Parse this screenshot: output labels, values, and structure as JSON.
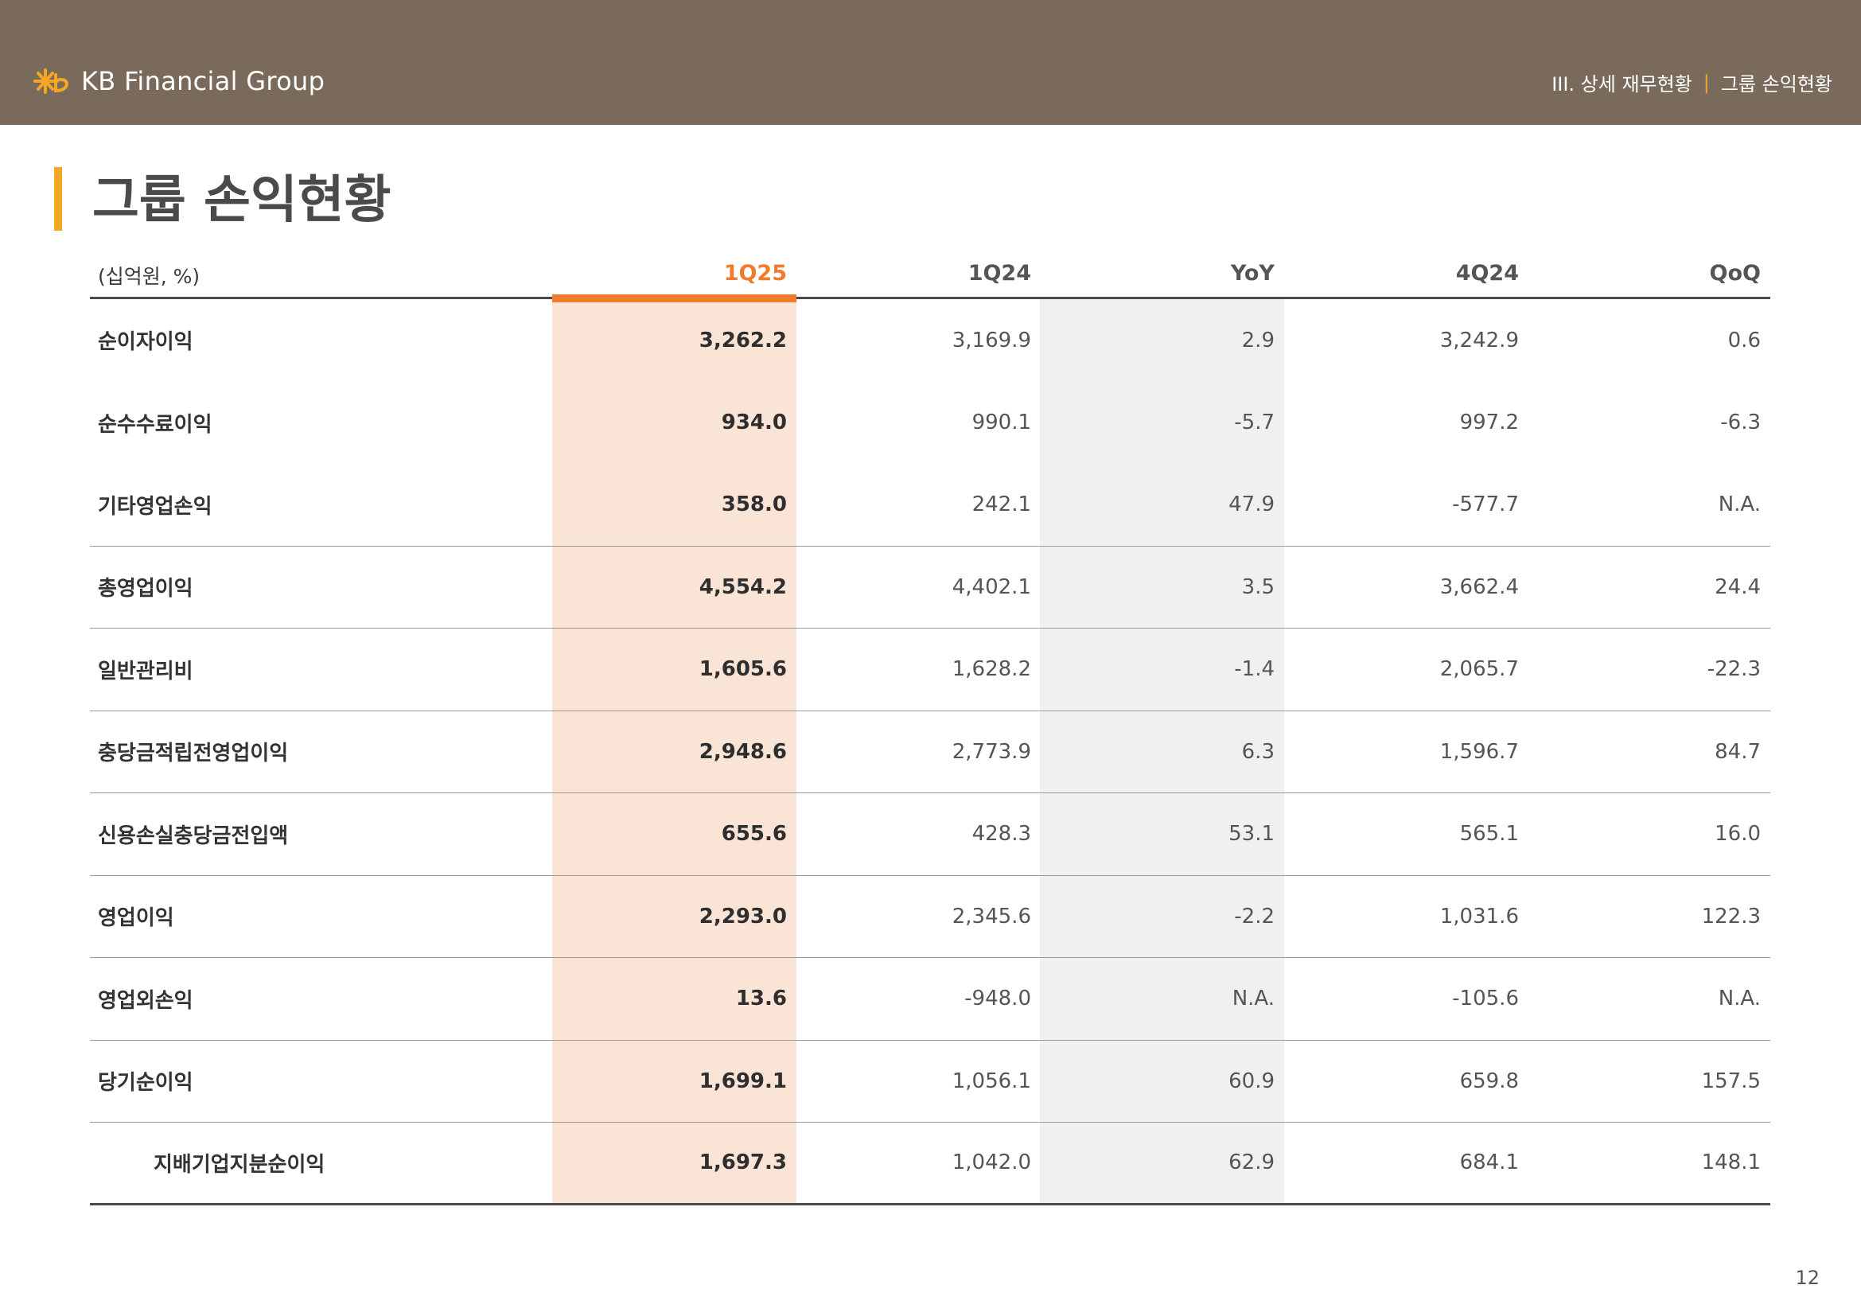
{
  "header": {
    "brand": "KB Financial Group",
    "breadcrumb_section": "III. 상세 재무현황",
    "breadcrumb_sep": "|",
    "breadcrumb_page": "그룹 손익현황",
    "colors": {
      "bar": "#7a6a5c",
      "accent": "#f5a623"
    }
  },
  "page_title": "그룹 손익현황",
  "table": {
    "unit": "(십억원, %)",
    "columns": [
      "1Q25",
      "1Q24",
      "YoY",
      "4Q24",
      "QoQ"
    ],
    "highlight_color": "#f07b2c",
    "rows": [
      {
        "label": "순이자이익",
        "values": [
          "3,262.2",
          "3,169.9",
          "2.9",
          "3,242.9",
          "0.6"
        ]
      },
      {
        "label": "순수수료이익",
        "values": [
          "934.0",
          "990.1",
          "-5.7",
          "997.2",
          "-6.3"
        ]
      },
      {
        "label": "기타영업손익",
        "values": [
          "358.0",
          "242.1",
          "47.9",
          "-577.7",
          "N.A."
        ]
      },
      {
        "label": "총영업이익",
        "values": [
          "4,554.2",
          "4,402.1",
          "3.5",
          "3,662.4",
          "24.4"
        ]
      },
      {
        "label": "일반관리비",
        "values": [
          "1,605.6",
          "1,628.2",
          "-1.4",
          "2,065.7",
          "-22.3"
        ]
      },
      {
        "label": "충당금적립전영업이익",
        "values": [
          "2,948.6",
          "2,773.9",
          "6.3",
          "1,596.7",
          "84.7"
        ]
      },
      {
        "label": "신용손실충당금전입액",
        "values": [
          "655.6",
          "428.3",
          "53.1",
          "565.1",
          "16.0"
        ]
      },
      {
        "label": "영업이익",
        "values": [
          "2,293.0",
          "2,345.6",
          "-2.2",
          "1,031.6",
          "122.3"
        ]
      },
      {
        "label": "영업외손익",
        "values": [
          "13.6",
          "-948.0",
          "N.A.",
          "-105.6",
          "N.A."
        ]
      },
      {
        "label": "당기순이익",
        "values": [
          "1,699.1",
          "1,056.1",
          "60.9",
          "659.8",
          "157.5"
        ]
      },
      {
        "label": "지배기업지분순이익",
        "values": [
          "1,697.3",
          "1,042.0",
          "62.9",
          "684.1",
          "148.1"
        ]
      }
    ]
  },
  "page_number": "12"
}
